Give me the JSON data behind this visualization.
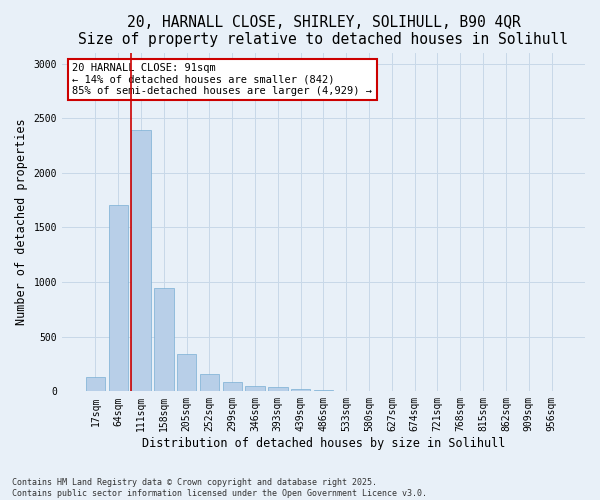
{
  "title_line1": "20, HARNALL CLOSE, SHIRLEY, SOLIHULL, B90 4QR",
  "title_line2": "Size of property relative to detached houses in Solihull",
  "xlabel": "Distribution of detached houses by size in Solihull",
  "ylabel": "Number of detached properties",
  "categories": [
    "17sqm",
    "64sqm",
    "111sqm",
    "158sqm",
    "205sqm",
    "252sqm",
    "299sqm",
    "346sqm",
    "393sqm",
    "439sqm",
    "486sqm",
    "533sqm",
    "580sqm",
    "627sqm",
    "674sqm",
    "721sqm",
    "768sqm",
    "815sqm",
    "862sqm",
    "909sqm",
    "956sqm"
  ],
  "values": [
    130,
    1710,
    2390,
    945,
    340,
    160,
    85,
    50,
    40,
    25,
    15,
    0,
    0,
    0,
    0,
    0,
    0,
    0,
    0,
    0,
    0
  ],
  "bar_color": "#b8cfe8",
  "bar_edge_color": "#7aafd4",
  "grid_color": "#c8d8e8",
  "bg_color": "#e8f0f8",
  "vline_color": "#cc0000",
  "annotation_text": "20 HARNALL CLOSE: 91sqm\n← 14% of detached houses are smaller (842)\n85% of semi-detached houses are larger (4,929) →",
  "annotation_box_color": "#ffffff",
  "annotation_edge_color": "#cc0000",
  "ylim": [
    0,
    3100
  ],
  "yticks": [
    0,
    500,
    1000,
    1500,
    2000,
    2500,
    3000
  ],
  "footnote": "Contains HM Land Registry data © Crown copyright and database right 2025.\nContains public sector information licensed under the Open Government Licence v3.0.",
  "title_fontsize": 10.5,
  "label_fontsize": 8.5,
  "tick_fontsize": 7,
  "annot_fontsize": 7.5,
  "footnote_fontsize": 6
}
